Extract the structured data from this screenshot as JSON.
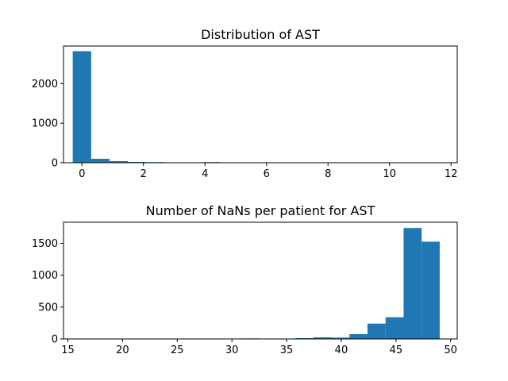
{
  "chart_data": [
    {
      "type": "bar",
      "title": "Distribution of AST",
      "xlabel": "",
      "ylabel": "",
      "color": "#1f77b4",
      "xlim": [
        -0.6,
        12.2
      ],
      "ylim": [
        0,
        2950
      ],
      "xticks": [
        0,
        2,
        4,
        6,
        8,
        10,
        12
      ],
      "yticks": [
        0,
        1000,
        2000
      ],
      "bin_width": 0.6,
      "bins": [
        {
          "x0": -0.3,
          "x1": 0.3,
          "value": 2820
        },
        {
          "x0": 0.3,
          "x1": 0.9,
          "value": 100
        },
        {
          "x0": 0.9,
          "x1": 1.5,
          "value": 40
        },
        {
          "x0": 1.5,
          "x1": 2.1,
          "value": 20
        },
        {
          "x0": 2.1,
          "x1": 2.7,
          "value": 15
        },
        {
          "x0": 2.7,
          "x1": 3.3,
          "value": 10
        },
        {
          "x0": 3.3,
          "x1": 3.9,
          "value": 4
        },
        {
          "x0": 3.9,
          "x1": 4.5,
          "value": 15
        },
        {
          "x0": 4.5,
          "x1": 5.1,
          "value": 3
        },
        {
          "x0": 5.1,
          "x1": 5.7,
          "value": 2
        },
        {
          "x0": 5.7,
          "x1": 6.3,
          "value": 1
        },
        {
          "x0": 6.3,
          "x1": 6.9,
          "value": 1
        },
        {
          "x0": 6.9,
          "x1": 7.5,
          "value": 1
        },
        {
          "x0": 7.5,
          "x1": 8.1,
          "value": 1
        },
        {
          "x0": 8.1,
          "x1": 8.7,
          "value": 0
        },
        {
          "x0": 8.7,
          "x1": 9.3,
          "value": 0
        },
        {
          "x0": 9.3,
          "x1": 9.9,
          "value": 0
        },
        {
          "x0": 9.9,
          "x1": 10.5,
          "value": 0
        },
        {
          "x0": 10.5,
          "x1": 11.1,
          "value": 0
        },
        {
          "x0": 11.1,
          "x1": 11.7,
          "value": 1
        }
      ]
    },
    {
      "type": "bar",
      "title": "Number of NaNs per patient for AST",
      "xlabel": "",
      "ylabel": "",
      "color": "#1f77b4",
      "xlim": [
        14.6,
        50.6
      ],
      "ylim": [
        0,
        1830
      ],
      "xticks": [
        15,
        20,
        25,
        30,
        35,
        40,
        45,
        50
      ],
      "yticks": [
        0,
        500,
        1000,
        1500
      ],
      "bin_width": 1.65,
      "bins": [
        {
          "x0": 16.0,
          "x1": 17.65,
          "value": 1
        },
        {
          "x0": 17.65,
          "x1": 19.3,
          "value": 0
        },
        {
          "x0": 19.3,
          "x1": 20.95,
          "value": 0
        },
        {
          "x0": 20.95,
          "x1": 22.6,
          "value": 0
        },
        {
          "x0": 22.6,
          "x1": 24.25,
          "value": 0
        },
        {
          "x0": 24.25,
          "x1": 25.9,
          "value": 0
        },
        {
          "x0": 25.9,
          "x1": 27.55,
          "value": 0
        },
        {
          "x0": 27.55,
          "x1": 29.2,
          "value": 0
        },
        {
          "x0": 29.2,
          "x1": 30.85,
          "value": 2
        },
        {
          "x0": 30.85,
          "x1": 32.5,
          "value": 8
        },
        {
          "x0": 32.5,
          "x1": 34.15,
          "value": 3
        },
        {
          "x0": 34.15,
          "x1": 35.8,
          "value": 4
        },
        {
          "x0": 35.8,
          "x1": 37.45,
          "value": 12
        },
        {
          "x0": 37.45,
          "x1": 39.1,
          "value": 25
        },
        {
          "x0": 39.1,
          "x1": 40.75,
          "value": 20
        },
        {
          "x0": 40.75,
          "x1": 42.4,
          "value": 75
        },
        {
          "x0": 42.4,
          "x1": 44.05,
          "value": 240
        },
        {
          "x0": 44.05,
          "x1": 45.7,
          "value": 340
        },
        {
          "x0": 45.7,
          "x1": 47.35,
          "value": 1740
        },
        {
          "x0": 47.35,
          "x1": 49.0,
          "value": 1525
        }
      ]
    }
  ]
}
